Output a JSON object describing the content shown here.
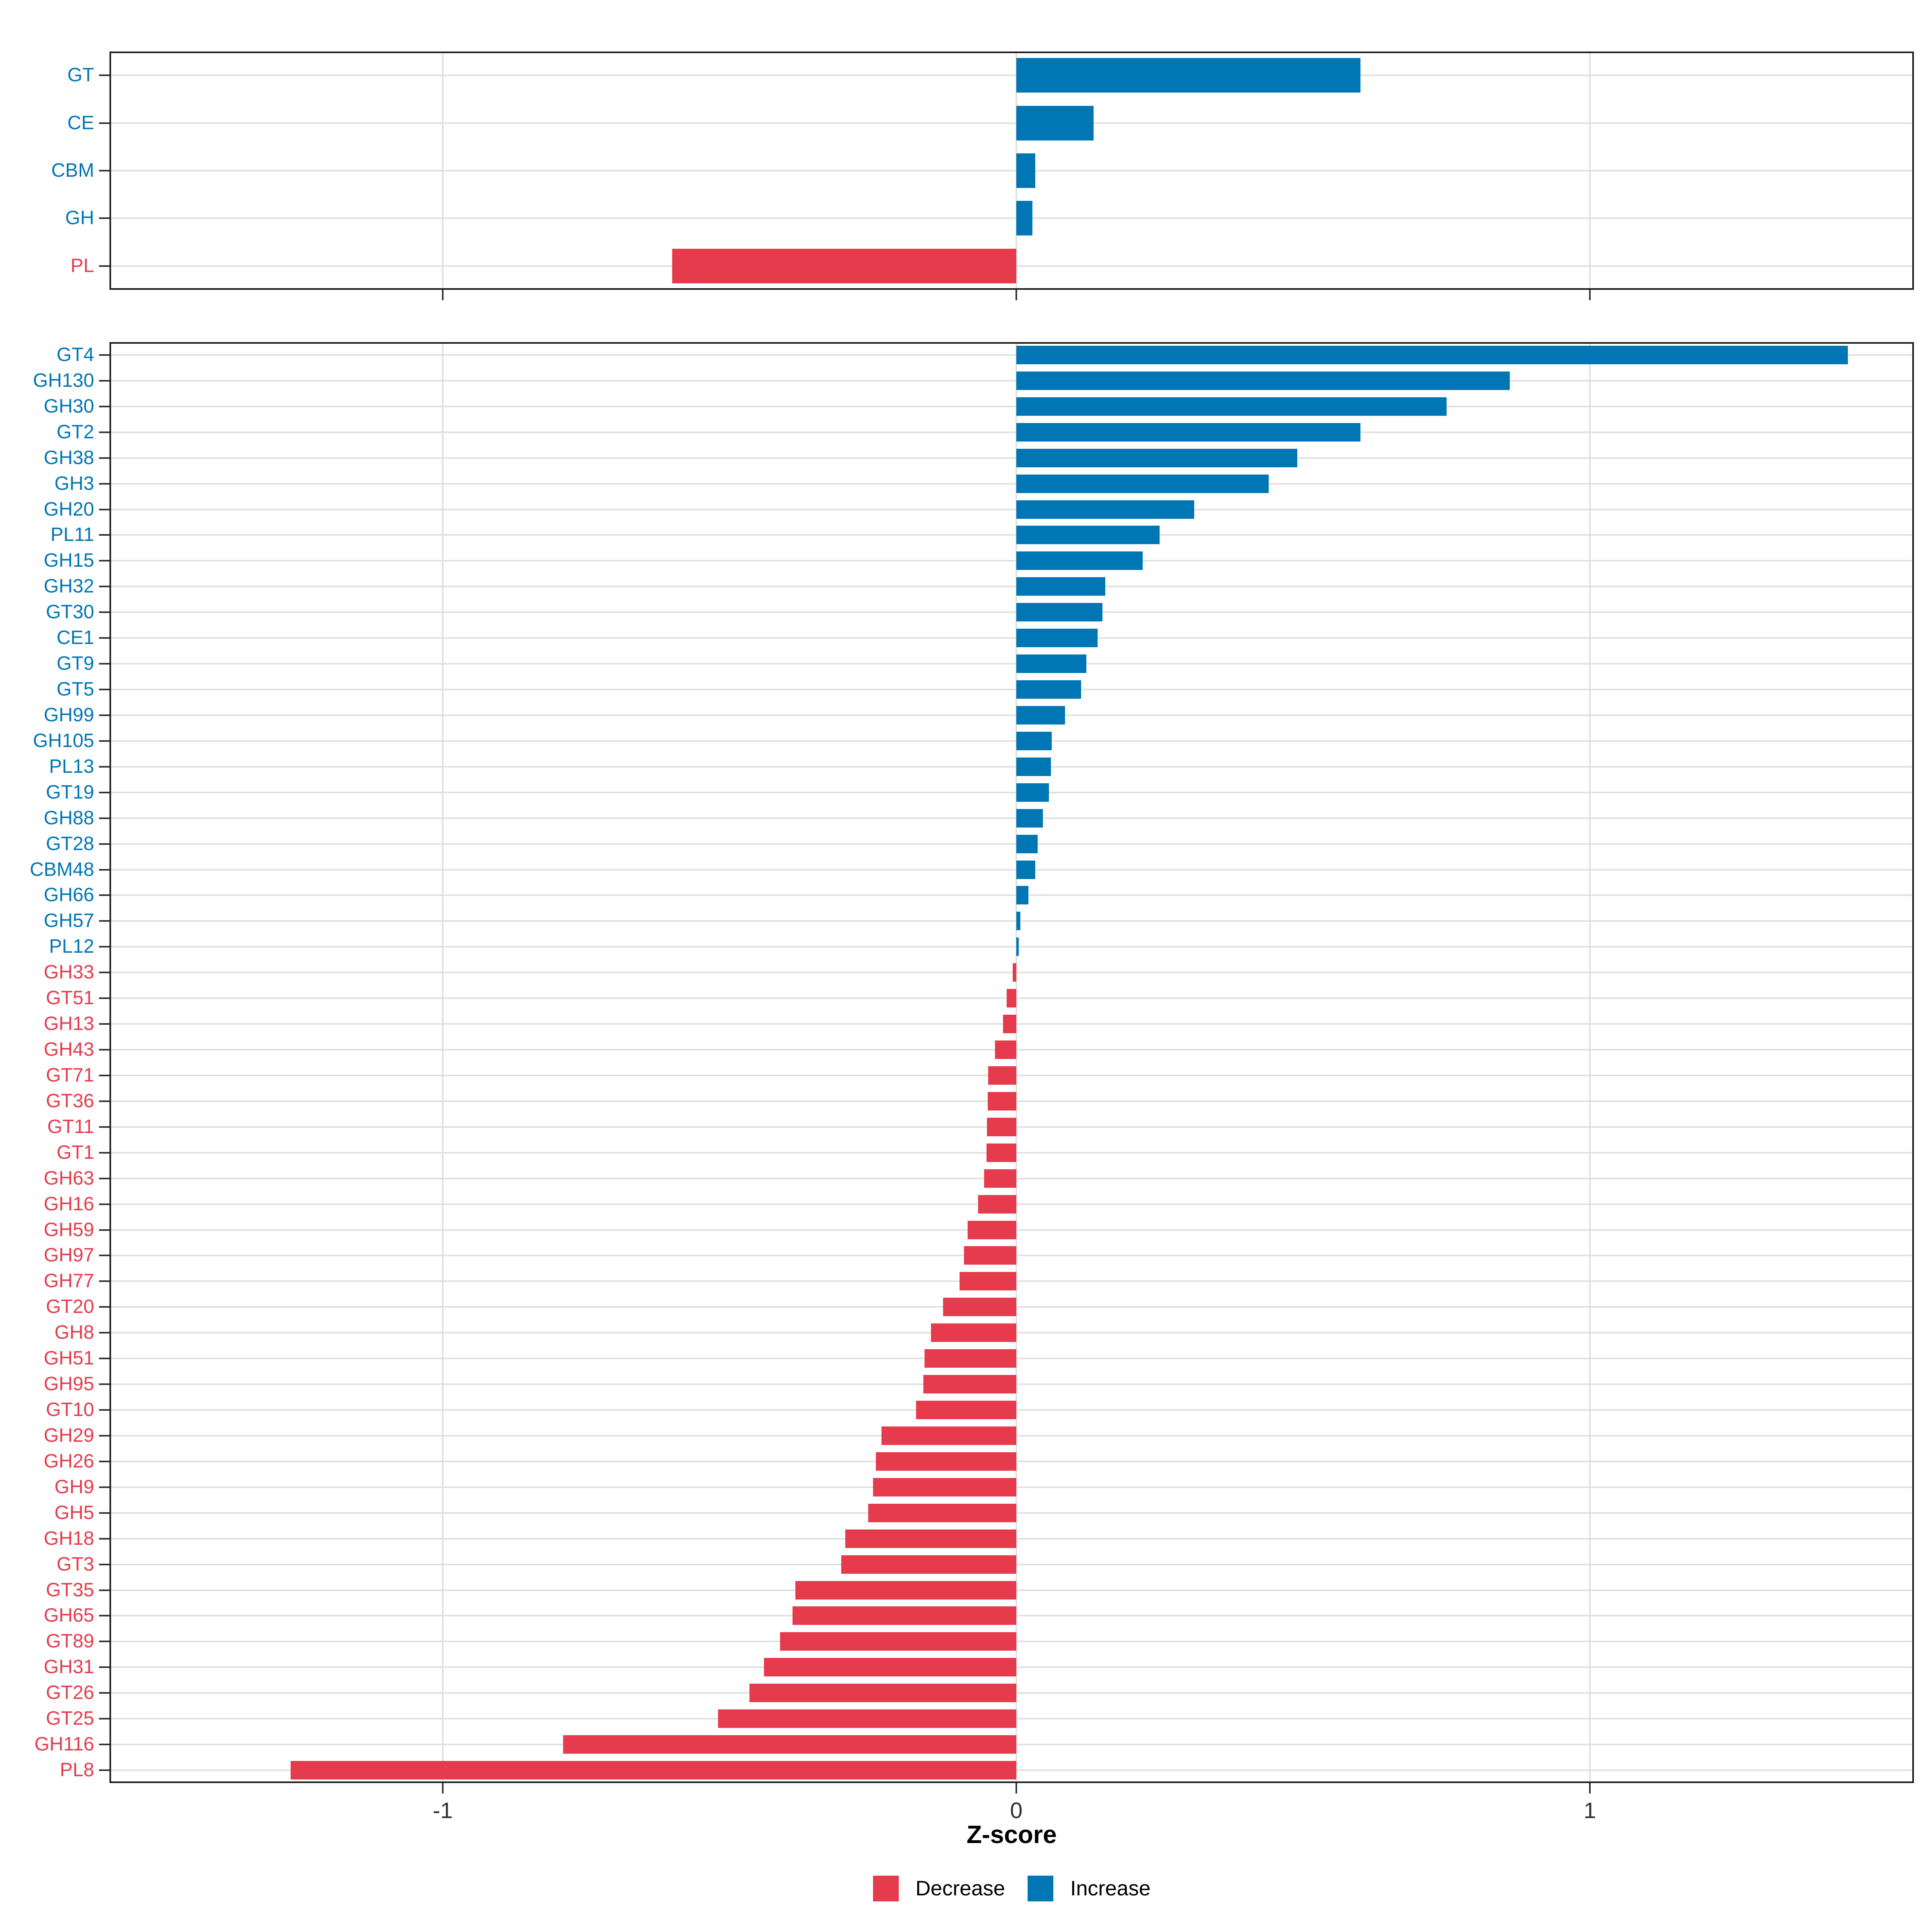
{
  "figure": {
    "xlabel": "Z-score",
    "x_axis": {
      "tick_values": [
        -1,
        0,
        1
      ],
      "tick_labels": [
        "-1",
        "0",
        "1"
      ],
      "range": [
        -1.581,
        1.565
      ]
    },
    "legend": {
      "items": [
        {
          "label": "Decrease",
          "color": "#e63b4c"
        },
        {
          "label": "Increase",
          "color": "#0076b4"
        }
      ]
    },
    "colors": {
      "increase": "#0076b4",
      "decrease": "#e63b4c",
      "gridline": "#e1e1e1",
      "panel_border": "#1b1b1b",
      "tick": "#333333",
      "axis_text": "#303030",
      "background": "#ffffff"
    }
  },
  "chart_data": [
    {
      "type": "bar",
      "orientation": "horizontal",
      "panel": "top",
      "title": "",
      "xlabel": "Z-score",
      "xlim": [
        -1.581,
        1.565
      ],
      "grid": true,
      "legend_position": "bottom",
      "categories": [
        "GT",
        "CE",
        "CBM",
        "GH",
        "PL"
      ],
      "values": [
        0.6,
        0.135,
        0.033,
        0.028,
        -0.6
      ],
      "series_name_positive": "Increase",
      "series_name_negative": "Decrease"
    },
    {
      "type": "bar",
      "orientation": "horizontal",
      "panel": "bottom",
      "title": "",
      "xlabel": "Z-score",
      "xlim": [
        -1.581,
        1.565
      ],
      "grid": true,
      "legend_position": "bottom",
      "categories": [
        "GT4",
        "GH130",
        "GH30",
        "GT2",
        "GH38",
        "GH3",
        "GH20",
        "PL11",
        "GH15",
        "GH32",
        "GT30",
        "CE1",
        "GT9",
        "GT5",
        "GH99",
        "GH105",
        "PL13",
        "GT19",
        "GH88",
        "GT28",
        "CBM48",
        "GH66",
        "GH57",
        "PL12",
        "GH33",
        "GT51",
        "GH13",
        "GH43",
        "GT71",
        "GT36",
        "GT11",
        "GT1",
        "GH63",
        "GH16",
        "GH59",
        "GH97",
        "GH77",
        "GT20",
        "GH8",
        "GH51",
        "GH95",
        "GT10",
        "GH29",
        "GH26",
        "GH9",
        "GH5",
        "GH18",
        "GT3",
        "GT35",
        "GH65",
        "GT89",
        "GH31",
        "GT26",
        "GT25",
        "GH116",
        "PL8"
      ],
      "values": [
        1.45,
        0.86,
        0.75,
        0.6,
        0.49,
        0.44,
        0.31,
        0.25,
        0.22,
        0.155,
        0.15,
        0.142,
        0.122,
        0.113,
        0.085,
        0.062,
        0.06,
        0.057,
        0.046,
        0.037,
        0.033,
        0.021,
        0.007,
        0.004,
        -0.006,
        -0.017,
        -0.023,
        -0.037,
        -0.049,
        -0.05,
        -0.051,
        -0.052,
        -0.056,
        -0.067,
        -0.085,
        -0.091,
        -0.099,
        -0.128,
        -0.149,
        -0.16,
        -0.162,
        -0.175,
        -0.235,
        -0.245,
        -0.25,
        -0.258,
        -0.298,
        -0.305,
        -0.385,
        -0.39,
        -0.412,
        -0.44,
        -0.465,
        -0.52,
        -0.79,
        -1.265
      ],
      "series_name_positive": "Increase",
      "series_name_negative": "Decrease"
    }
  ]
}
